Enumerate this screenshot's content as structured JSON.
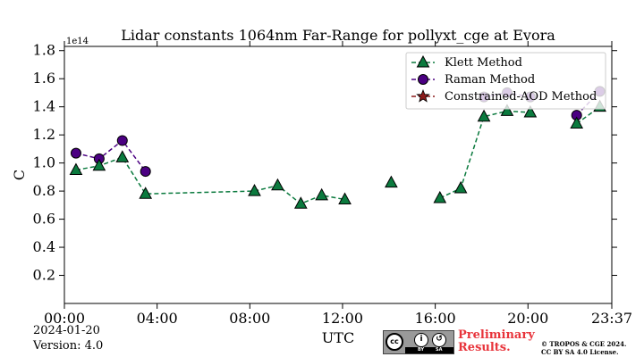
{
  "chart_data": {
    "type": "line",
    "title": "Lidar constants 1064nm Far-Range for pollyxt_cge at Evora",
    "xlabel": "UTC",
    "ylabel": "C",
    "y_multiplier_label": "1e14",
    "x_ticks": [
      "00:00",
      "04:00",
      "08:00",
      "12:00",
      "16:00",
      "20:00",
      "23:37"
    ],
    "x_tick_hours": [
      0,
      4,
      8,
      12,
      16,
      20,
      23.6167
    ],
    "xlim_hours": [
      0,
      23.6167
    ],
    "y_ticks": [
      "0.2",
      "0.4",
      "0.6",
      "0.8",
      "1.0",
      "1.2",
      "1.4",
      "1.6",
      "1.8"
    ],
    "y_tick_values": [
      0.2,
      0.4,
      0.6,
      0.8,
      1.0,
      1.2,
      1.4,
      1.6,
      1.8
    ],
    "ylim": [
      0.0,
      1.83
    ],
    "grid": false,
    "legend_position": "top-right",
    "series": [
      {
        "name": "Klett Method",
        "color": "#0b7a3e",
        "marker": "triangle",
        "line_style": "dashed",
        "segments": [
          {
            "x": [
              0.5,
              1.5,
              2.5,
              3.5,
              8.2,
              9.2,
              10.2,
              11.1,
              12.1
            ],
            "y": [
              0.95,
              0.98,
              1.04,
              0.78,
              0.8,
              0.84,
              0.71,
              0.77,
              0.74
            ]
          },
          {
            "x": [
              14.1
            ],
            "y": [
              0.86
            ]
          },
          {
            "x": [
              16.2,
              17.1,
              18.1,
              19.1,
              20.1
            ],
            "y": [
              0.75,
              0.82,
              1.33,
              1.37,
              1.36
            ]
          },
          {
            "x": [
              22.1,
              23.1
            ],
            "y": [
              1.28,
              1.4
            ]
          }
        ]
      },
      {
        "name": "Raman Method",
        "color": "#4b0082",
        "marker": "circle",
        "line_style": "dashed",
        "segments": [
          {
            "x": [
              0.5,
              1.5,
              2.5,
              3.5
            ],
            "y": [
              1.07,
              1.03,
              1.16,
              0.94
            ]
          },
          {
            "x": [
              18.1,
              19.1,
              20.1
            ],
            "y": [
              1.47,
              1.5,
              1.47
            ]
          },
          {
            "x": [
              22.1,
              23.1
            ],
            "y": [
              1.34,
              1.51
            ]
          }
        ]
      },
      {
        "name": "Constrained-AOD Method",
        "color": "#8b1a1a",
        "marker": "star",
        "line_style": "dashed",
        "segments": []
      }
    ]
  },
  "footer": {
    "date": "2024-01-20",
    "version": "Version: 4.0",
    "license_badge_bottom_left": "BY",
    "license_badge_bottom_right": "SA",
    "cc_text": "cc",
    "preliminary_line1": "Preliminary",
    "preliminary_line2": "Results.",
    "copyright_line1": "© TROPOS & CGE 2024.",
    "copyright_line2": "CC BY SA 4.0 License."
  }
}
